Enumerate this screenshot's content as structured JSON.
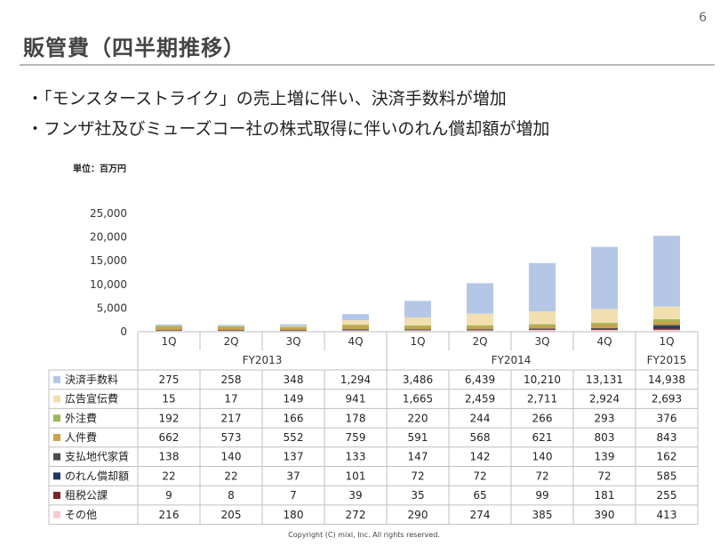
{
  "page_number": "6",
  "title": "販管費（四半期推移）",
  "bullets": [
    "・「モンスターストライク」の売上増に伴い、決済手数料が増加",
    "・フンザ社及びミューズコー社の株式取得に伴いのれん償却額が増加"
  ],
  "unit_label": "単位：百万円",
  "footer": "Copyright (C) mixi, Inc. All rights reserved.",
  "chart_data": {
    "type": "bar",
    "stacked": true,
    "categories": [
      "1Q",
      "2Q",
      "3Q",
      "4Q",
      "1Q",
      "2Q",
      "3Q",
      "4Q",
      "1Q"
    ],
    "fiscal_years": [
      {
        "label": "FY2013",
        "span": 4
      },
      {
        "label": "FY2014",
        "span": 4
      },
      {
        "label": "FY2015",
        "span": 1
      }
    ],
    "ylim": [
      0,
      25000
    ],
    "yticks": [
      0,
      5000,
      10000,
      15000,
      20000,
      25000
    ],
    "ytick_labels": [
      "0",
      "5,000",
      "10,000",
      "15,000",
      "20,000",
      "25,000"
    ],
    "series": [
      {
        "name": "決済手数料",
        "color": "#b4c7e7",
        "values": [
          275,
          258,
          348,
          1294,
          3486,
          6439,
          10210,
          13131,
          14938
        ],
        "labels": [
          "275",
          "258",
          "348",
          "1,294",
          "3,486",
          "6,439",
          "10,210",
          "13,131",
          "14,938"
        ]
      },
      {
        "name": "広告宣伝費",
        "color": "#f2dfb0",
        "values": [
          15,
          17,
          149,
          941,
          1665,
          2459,
          2711,
          2924,
          2693
        ],
        "labels": [
          "15",
          "17",
          "149",
          "941",
          "1,665",
          "2,459",
          "2,711",
          "2,924",
          "2,693"
        ]
      },
      {
        "name": "外注費",
        "color": "#9bbb59",
        "values": [
          192,
          217,
          166,
          178,
          220,
          244,
          266,
          293,
          376
        ],
        "labels": [
          "192",
          "217",
          "166",
          "178",
          "220",
          "244",
          "266",
          "293",
          "376"
        ]
      },
      {
        "name": "人件費",
        "color": "#c9a24a",
        "values": [
          662,
          573,
          552,
          759,
          591,
          568,
          621,
          803,
          843
        ],
        "labels": [
          "662",
          "573",
          "552",
          "759",
          "591",
          "568",
          "621",
          "803",
          "843"
        ]
      },
      {
        "name": "支払地代家賃",
        "color": "#4d4d4d",
        "values": [
          138,
          140,
          137,
          133,
          147,
          142,
          140,
          139,
          162
        ],
        "labels": [
          "138",
          "140",
          "137",
          "133",
          "147",
          "142",
          "140",
          "139",
          "162"
        ]
      },
      {
        "name": "のれん償却額",
        "color": "#1f3864",
        "values": [
          22,
          22,
          37,
          101,
          72,
          72,
          72,
          72,
          585
        ],
        "labels": [
          "22",
          "22",
          "37",
          "101",
          "72",
          "72",
          "72",
          "72",
          "585"
        ]
      },
      {
        "name": "租税公課",
        "color": "#7b2424",
        "values": [
          9,
          8,
          7,
          39,
          35,
          65,
          99,
          181,
          255
        ],
        "labels": [
          "9",
          "8",
          "7",
          "39",
          "35",
          "65",
          "99",
          "181",
          "255"
        ]
      },
      {
        "name": "その他",
        "color": "#f4cccc",
        "values": [
          216,
          205,
          180,
          272,
          290,
          274,
          385,
          390,
          413
        ],
        "labels": [
          "216",
          "205",
          "180",
          "272",
          "290",
          "274",
          "385",
          "390",
          "413"
        ]
      }
    ],
    "stack_order_bottom_to_top": [
      "その他",
      "租税公課",
      "のれん償却額",
      "支払地代家賃",
      "人件費",
      "外注費",
      "広告宣伝費",
      "決済手数料"
    ],
    "grid": false,
    "legend": "table-left"
  }
}
